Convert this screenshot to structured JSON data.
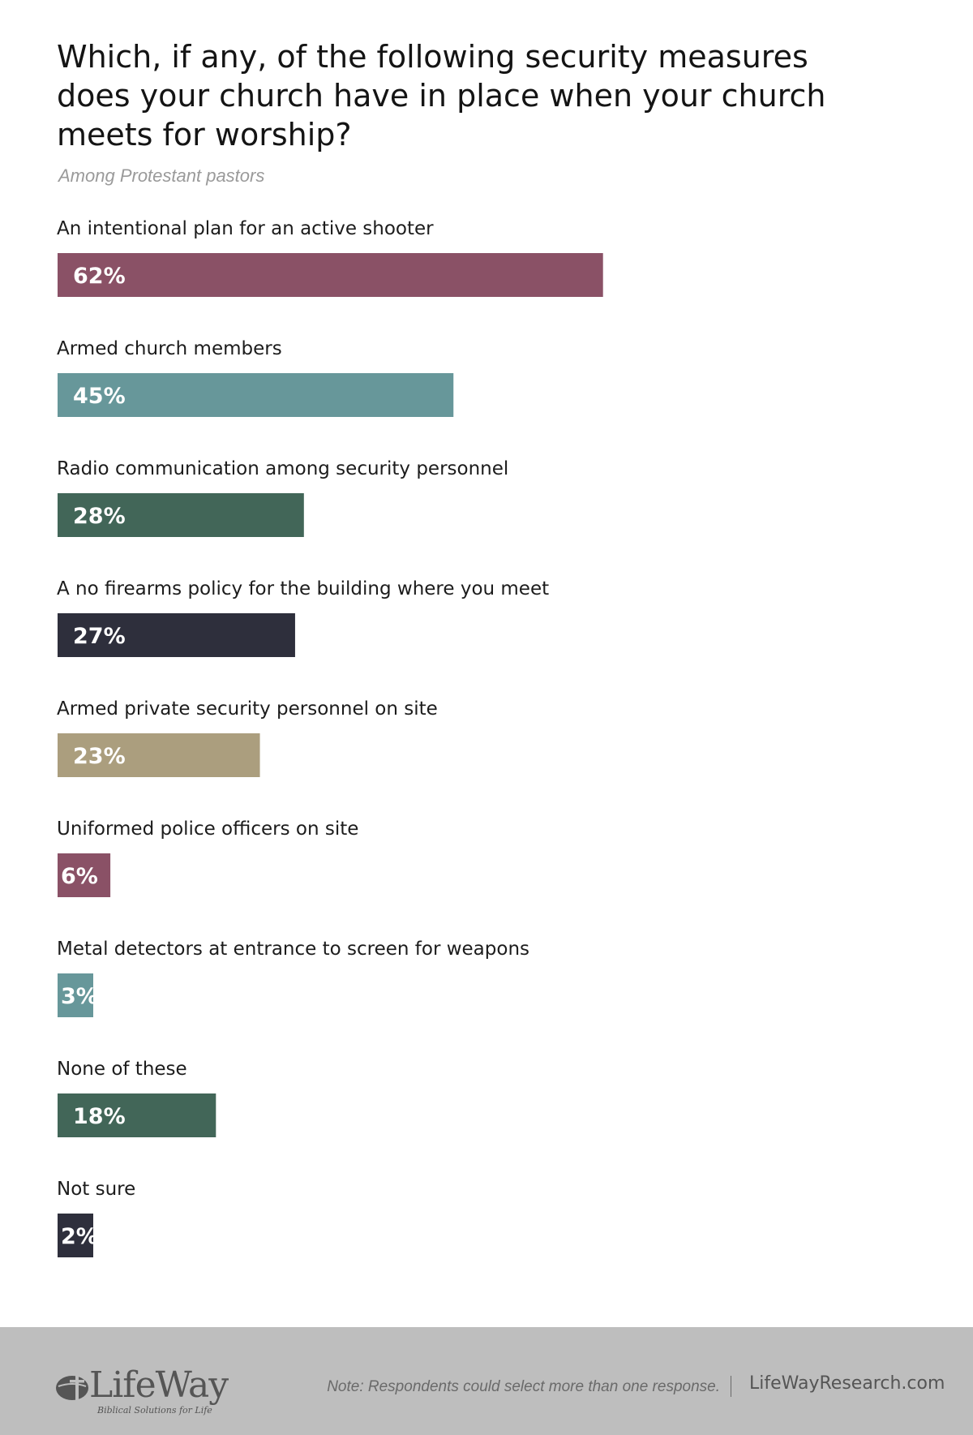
{
  "chart_data": {
    "type": "bar",
    "orientation": "horizontal",
    "title": "Which, if any, of the following security measures does your church have in place when your church meets for worship?",
    "subtitle": "Among Protestant pastors",
    "categories": [
      "An intentional plan for an active shooter",
      "Armed church members",
      "Radio communication among security personnel",
      "A no firearms policy for the building where you meet",
      "Armed private security personnel on site",
      "Uniformed police officers on site",
      "Metal detectors at entrance to screen for weapons",
      "None of these",
      "Not sure"
    ],
    "values": [
      62,
      45,
      28,
      27,
      23,
      6,
      3,
      18,
      2
    ],
    "value_labels": [
      "62%",
      "45%",
      "28%",
      "27%",
      "23%",
      "6%",
      "3%",
      "18%",
      "2%"
    ],
    "colors": [
      "#8a5166",
      "#67979a",
      "#426658",
      "#2e2f3c",
      "#ab9e7e",
      "#8a5166",
      "#67979a",
      "#426658",
      "#2e2f3c"
    ],
    "unit": "%",
    "grid": false,
    "legend": "none"
  },
  "footer": {
    "logo_text": "LifeWay",
    "logo_tagline": "Biblical Solutions for Life",
    "note": "Note: Respondents could select more than one response.",
    "site": "LifeWayResearch.com",
    "background_color": "#bebebe"
  }
}
